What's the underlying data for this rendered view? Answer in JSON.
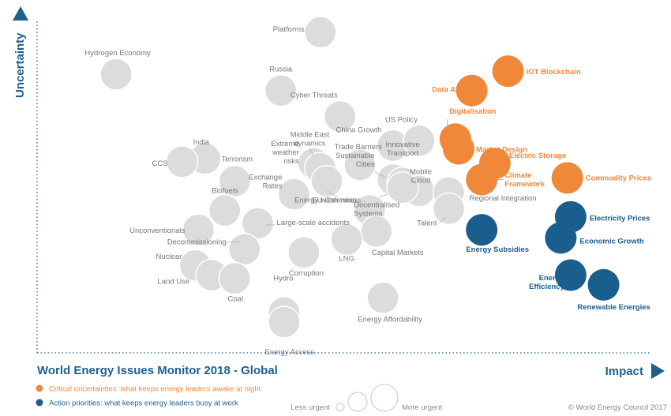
{
  "title": "World Energy Issues Monitor 2018 - Global",
  "copyright": "© World Energy Council 2017",
  "axes": {
    "x_label": "Impact",
    "y_label": "Uncertainty"
  },
  "legend": {
    "uncertainty": "Critical uncertainties: what keeps energy leaders awake at night",
    "action": "Action priorities: what keeps energy leaders busy at work",
    "less_urgent": "Less urgent",
    "more_urgent": "More urgent"
  },
  "colors": {
    "uncertainty": "#f0883a",
    "action": "#1a5e8e",
    "neutral": "#dcdcdc",
    "label_gray": "#777777",
    "title_blue": "#1e5f8c"
  },
  "chart_data": {
    "type": "scatter",
    "title": "World Energy Issues Monitor 2018 - Global",
    "xlabel": "Impact",
    "ylabel": "Uncertainty",
    "grid": false,
    "legend_position": "bottom-left",
    "series": [
      {
        "name": "Critical uncertainties: what keeps energy leaders awake at night",
        "category": "uncertainty",
        "points": [
          {
            "name": "IOT Blockchain",
            "x": 7.15,
            "y": 8.7
          },
          {
            "name": "Data AI",
            "x": 6.6,
            "y": 8.1
          },
          {
            "name": "Digitalisation",
            "x": 6.35,
            "y": 6.6
          },
          {
            "name": "Market Design",
            "x": 6.4,
            "y": 6.3
          },
          {
            "name": "Electric Storage",
            "x": 6.95,
            "y": 5.85
          },
          {
            "name": "Climate Framework",
            "x": 6.75,
            "y": 5.35
          },
          {
            "name": "Commodity Prices",
            "x": 8.05,
            "y": 5.4
          }
        ]
      },
      {
        "name": "Action priorities: what keeps energy leaders busy at work",
        "category": "action",
        "points": [
          {
            "name": "Energy Subsidies",
            "x": 6.75,
            "y": 3.8
          },
          {
            "name": "Electricity Prices",
            "x": 8.1,
            "y": 4.2
          },
          {
            "name": "Economic Growth",
            "x": 7.95,
            "y": 3.55
          },
          {
            "name": "Energy Efficiency",
            "x": 8.1,
            "y": 2.4
          },
          {
            "name": "Renewable Energies",
            "x": 8.6,
            "y": 2.1
          }
        ]
      },
      {
        "name": "Other issues",
        "category": "neutral",
        "points": [
          {
            "name": "Platforms",
            "x": 4.3,
            "y": 9.9
          },
          {
            "name": "Hydrogen Economy",
            "x": 1.2,
            "y": 8.6
          },
          {
            "name": "Russia",
            "x": 3.7,
            "y": 8.1
          },
          {
            "name": "Cyber Threats",
            "x": 4.6,
            "y": 7.3
          },
          {
            "name": "China Growth",
            "x": 5.4,
            "y": 6.4
          },
          {
            "name": "US Policy",
            "x": 5.8,
            "y": 6.55
          },
          {
            "name": "India",
            "x": 2.55,
            "y": 6.0
          },
          {
            "name": "CCS",
            "x": 2.2,
            "y": 5.9
          },
          {
            "name": "Terrorism",
            "x": 3.0,
            "y": 5.3
          },
          {
            "name": "Middle East dynamics",
            "x": 4.2,
            "y": 5.85
          },
          {
            "name": "Extreme weather risks",
            "x": 4.3,
            "y": 5.7
          },
          {
            "name": "Trade Barriers",
            "x": 4.9,
            "y": 5.8
          },
          {
            "name": "Exchange Rates",
            "x": 3.9,
            "y": 4.9
          },
          {
            "name": "Sustainable Cities",
            "x": 5.4,
            "y": 5.35
          },
          {
            "name": "Energy water nexus",
            "x": 4.4,
            "y": 5.3
          },
          {
            "name": "Innovative Transport",
            "x": 5.55,
            "y": 5.25
          },
          {
            "name": "Mobile Cloud",
            "x": 5.8,
            "y": 5.0
          },
          {
            "name": "Decentralised Systems",
            "x": 5.55,
            "y": 5.1
          },
          {
            "name": "EU Cohesion",
            "x": 5.05,
            "y": 4.4
          },
          {
            "name": "Regional Integration",
            "x": 6.25,
            "y": 4.95
          },
          {
            "name": "Talent",
            "x": 6.25,
            "y": 4.45
          },
          {
            "name": "Biofuels",
            "x": 2.85,
            "y": 4.4
          },
          {
            "name": "Large-scale accidents",
            "x": 3.35,
            "y": 4.0
          },
          {
            "name": "Unconventionals",
            "x": 2.45,
            "y": 3.8
          },
          {
            "name": "Capital Markets",
            "x": 5.15,
            "y": 3.75
          },
          {
            "name": "LNG",
            "x": 4.7,
            "y": 3.5
          },
          {
            "name": "Decommissioning",
            "x": 3.15,
            "y": 3.2
          },
          {
            "name": "Corruption",
            "x": 4.05,
            "y": 3.1
          },
          {
            "name": "Nuclear",
            "x": 2.4,
            "y": 2.7
          },
          {
            "name": "Land Use",
            "x": 2.65,
            "y": 2.4
          },
          {
            "name": "Coal",
            "x": 3.0,
            "y": 2.3
          },
          {
            "name": "Energy Affordability",
            "x": 5.25,
            "y": 1.7
          },
          {
            "name": "Hydro",
            "x": 3.75,
            "y": 1.25
          },
          {
            "name": "Energy Access",
            "x": 3.75,
            "y": 0.95
          }
        ]
      }
    ]
  }
}
